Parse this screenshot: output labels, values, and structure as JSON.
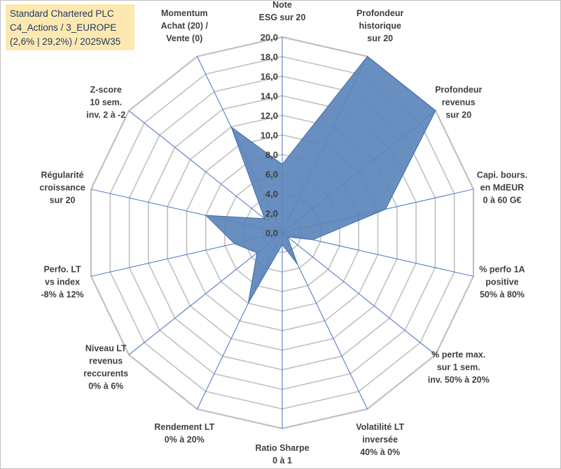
{
  "info_box": {
    "line1": "Standard Chartered PLC",
    "line2": "C4_Actions / 3_EUROPE",
    "line3": "(2,6% | 29,2%) / 2025W35"
  },
  "chart_data": {
    "type": "radar",
    "rmin": 0,
    "rmax": 20,
    "tick_step": 2,
    "tick_labels": [
      "0,0",
      "2,0",
      "4,0",
      "6,0",
      "8,0",
      "10,0",
      "12,0",
      "14,0",
      "16,0",
      "18,0",
      "20,0"
    ],
    "axes": [
      [
        "Note",
        "ESG sur 20"
      ],
      [
        "Profondeur",
        "historique",
        "sur 20"
      ],
      [
        "Profondeur",
        "revenus",
        "sur 20"
      ],
      [
        "Capi. bours.",
        "en MdEUR",
        "0 à 60 G€"
      ],
      [
        "% perfo 1A",
        "positive",
        "50% à 80%"
      ],
      [
        "% perte max.",
        "sur 1 sem.",
        "inv. 50% à 20%"
      ],
      [
        "Volatilité LT",
        "inversée",
        "40% à 0%"
      ],
      [
        "Ratio Sharpe",
        "0 à 1"
      ],
      [
        "Rendement LT",
        "0% à 20%"
      ],
      [
        "Niveau LT",
        "revenus",
        "reccurents",
        "0% à 6%"
      ],
      [
        "Perfo. LT",
        "vs index",
        "-8% à 12%"
      ],
      [
        "Régularité",
        "croissance",
        "sur 20"
      ],
      [
        "Z-score",
        "10 sem.",
        "inv. 2 à -2"
      ],
      [
        "Momentum",
        "Achat (20) /",
        "Vente (0)"
      ]
    ],
    "series": [
      {
        "values": [
          7.0,
          20.0,
          20.0,
          10.8,
          3.2,
          0.7,
          3.6,
          1.2,
          8.0,
          3.3,
          5.0,
          8.0,
          2.3,
          12.0
        ]
      }
    ],
    "colors": {
      "fill": "#5b86bb",
      "stroke": "#3f6ea5",
      "grid": "#c0c0c0",
      "spoke": "#4472c4"
    },
    "grid": true,
    "legend": "none"
  }
}
